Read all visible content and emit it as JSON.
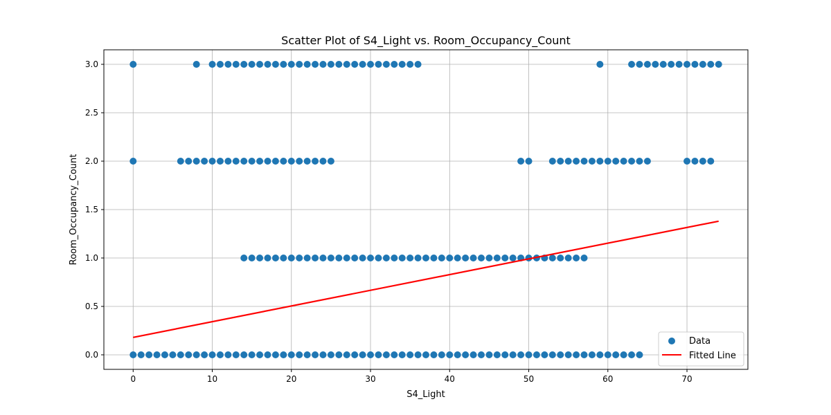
{
  "chart_data": {
    "type": "scatter",
    "title": "Scatter Plot of S4_Light vs. Room_Occupancy_Count",
    "xlabel": "S4_Light",
    "ylabel": "Room_Occupancy_Count",
    "xlim": [
      -3.7,
      77.7
    ],
    "ylim": [
      -0.15,
      3.15
    ],
    "xticks": [
      0,
      10,
      20,
      30,
      40,
      50,
      60,
      70
    ],
    "yticks": [
      0.0,
      0.5,
      1.0,
      1.5,
      2.0,
      2.5,
      3.0
    ],
    "xtick_labels": [
      "0",
      "10",
      "20",
      "30",
      "40",
      "50",
      "60",
      "70"
    ],
    "ytick_labels": [
      "0.0",
      "0.5",
      "1.0",
      "1.5",
      "2.0",
      "2.5",
      "3.0"
    ],
    "grid": true,
    "legend_position": "lower-right",
    "series": [
      {
        "name": "Data",
        "kind": "scatter",
        "color": "#1f77b4",
        "groups": [
          {
            "y": 0,
            "x": [
              0,
              1,
              2,
              3,
              4,
              5,
              6,
              7,
              8,
              9,
              10,
              11,
              12,
              13,
              14,
              15,
              16,
              17,
              18,
              19,
              20,
              21,
              22,
              23,
              24,
              25,
              26,
              27,
              28,
              29,
              30,
              31,
              32,
              33,
              34,
              35,
              36,
              37,
              38,
              39,
              40,
              41,
              42,
              43,
              44,
              45,
              46,
              47,
              48,
              49,
              50,
              51,
              52,
              53,
              54,
              55,
              56,
              57,
              58,
              59,
              60,
              61,
              62,
              63,
              64
            ]
          },
          {
            "y": 1,
            "x": [
              14,
              15,
              16,
              17,
              18,
              19,
              20,
              21,
              22,
              23,
              24,
              25,
              26,
              27,
              28,
              29,
              30,
              31,
              32,
              33,
              34,
              35,
              36,
              37,
              38,
              39,
              40,
              41,
              42,
              43,
              44,
              45,
              46,
              47,
              48,
              49,
              50,
              51,
              52,
              53,
              54,
              55,
              56,
              57
            ]
          },
          {
            "y": 2,
            "x": [
              0,
              6,
              7,
              8,
              9,
              10,
              11,
              12,
              13,
              14,
              15,
              16,
              17,
              18,
              19,
              20,
              21,
              22,
              23,
              24,
              25,
              49,
              50,
              53,
              54,
              55,
              56,
              57,
              58,
              59,
              60,
              61,
              62,
              63,
              64,
              65,
              70,
              71,
              72,
              73
            ]
          },
          {
            "y": 3,
            "x": [
              0,
              8,
              10,
              11,
              12,
              13,
              14,
              15,
              16,
              17,
              18,
              19,
              20,
              21,
              22,
              23,
              24,
              25,
              26,
              27,
              28,
              29,
              30,
              31,
              32,
              33,
              34,
              35,
              36,
              59,
              63,
              64,
              65,
              66,
              67,
              68,
              69,
              70,
              71,
              72,
              73,
              74
            ]
          }
        ]
      },
      {
        "name": "Fitted Line",
        "kind": "line",
        "color": "#ff0000",
        "x": [
          0,
          74
        ],
        "y": [
          0.18,
          1.38
        ]
      }
    ]
  }
}
